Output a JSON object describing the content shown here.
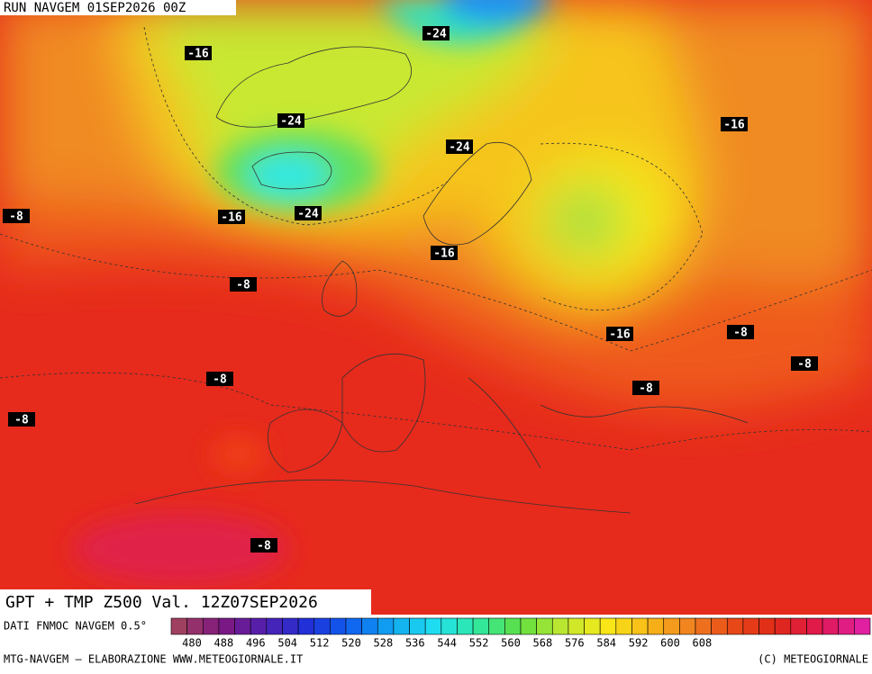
{
  "header": {
    "run": "RUN NAVGEM 01SEP2026 00Z"
  },
  "map": {
    "contour_labels": [
      -16,
      -24,
      -24,
      -16,
      -24,
      -8,
      -16,
      -24,
      -16,
      -8,
      -16,
      -8,
      -8,
      -8,
      -8,
      -8,
      -8
    ]
  },
  "footer": {
    "title": "GPT + TMP Z500 Val. 12Z07SEP2026",
    "source": "DATI FNMOC NAVGEM 0.5°",
    "credit_left": "MTG-NAVGEM — ELABORAZIONE WWW.METEOGIORNALE.IT",
    "credit_right": "(C) METEOGIORNALE"
  },
  "colorbar": {
    "ticks": [
      480,
      488,
      496,
      504,
      512,
      520,
      528,
      536,
      544,
      552,
      560,
      568,
      576,
      584,
      592,
      600,
      608
    ],
    "colors": [
      "#a04060",
      "#801880",
      "#5020b0",
      "#2030d8",
      "#1060f0",
      "#10a8f0",
      "#20e0f0",
      "#30e8a0",
      "#60e040",
      "#c0e830",
      "#f8e818",
      "#f8b818",
      "#f08020",
      "#e84818",
      "#e02818",
      "#e01850",
      "#e020a0"
    ]
  }
}
